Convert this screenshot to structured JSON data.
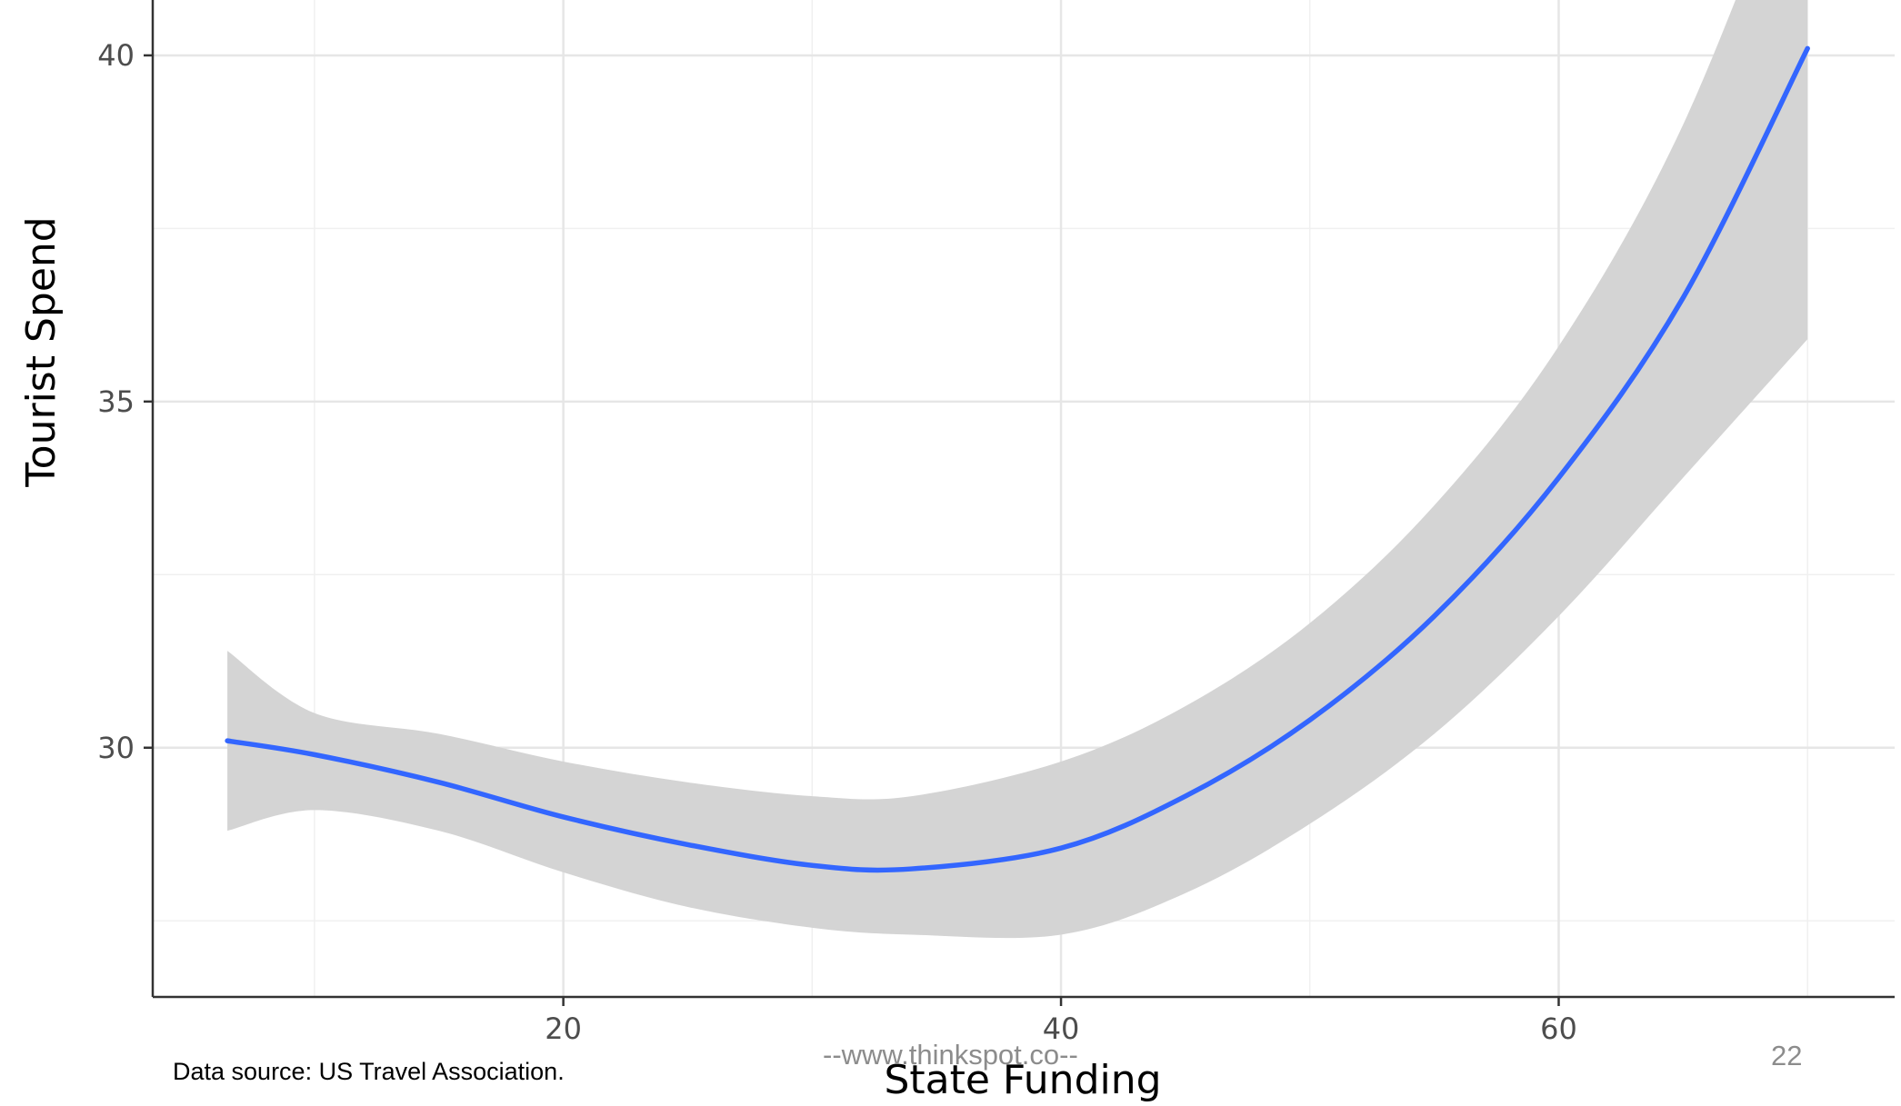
{
  "chart_data": {
    "type": "line",
    "xlabel": "State Funding",
    "ylabel": "Tourist Spend",
    "xlim": [
      3.5,
      73.5
    ],
    "ylim": [
      26.4,
      40.8
    ],
    "x_ticks": [
      20,
      40,
      60
    ],
    "x_tick_labels": [
      "20",
      "40",
      "60"
    ],
    "y_ticks": [
      30,
      35,
      40
    ],
    "y_tick_labels": [
      "30",
      "35",
      "40"
    ],
    "x_minor_ticks": [
      10,
      30,
      50,
      70
    ],
    "y_minor_ticks": [
      27.5,
      32.5,
      37.5
    ],
    "grid": true,
    "series": [
      {
        "kind": "smooth-fit",
        "color": "#3366ff",
        "x": [
          6.5,
          10,
          15,
          20,
          25,
          30,
          34,
          40,
          45,
          50,
          55,
          60,
          65,
          70
        ],
        "y": [
          30.1,
          29.9,
          29.5,
          29.0,
          28.6,
          28.3,
          28.25,
          28.55,
          29.3,
          30.4,
          31.9,
          33.9,
          36.5,
          40.1
        ],
        "ci_lower": [
          28.8,
          29.1,
          28.8,
          28.2,
          27.7,
          27.4,
          27.3,
          27.3,
          27.9,
          28.9,
          30.2,
          31.9,
          33.9,
          35.9
        ],
        "ci_upper": [
          31.4,
          30.5,
          30.2,
          29.8,
          29.5,
          29.3,
          29.3,
          29.8,
          30.6,
          31.8,
          33.5,
          35.8,
          39.0,
          43.5
        ],
        "ci_fill": "#d4d4d4"
      }
    ]
  },
  "footer": {
    "source": "Data source: US Travel Association.",
    "watermark": "--www.thinkspot.co--",
    "page_number": "22"
  }
}
